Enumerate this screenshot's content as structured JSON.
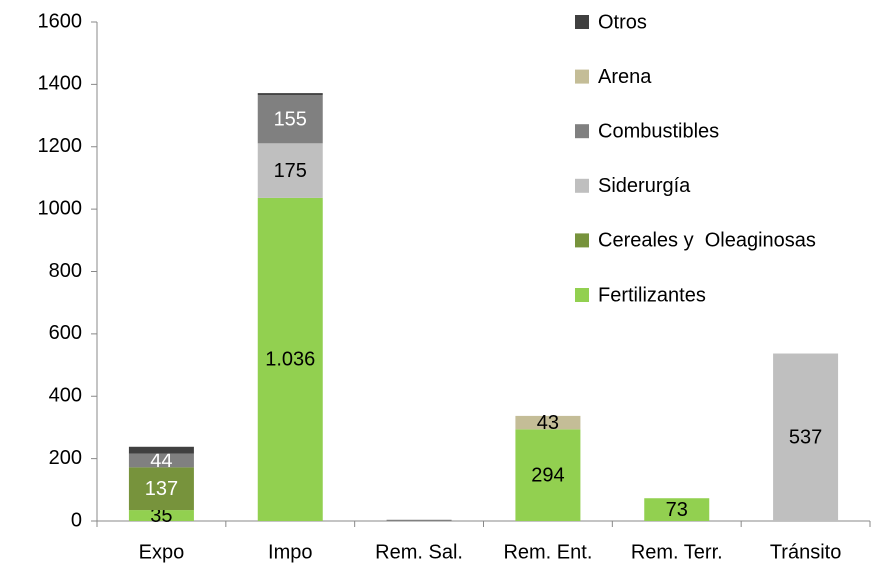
{
  "chart_data": {
    "type": "stacked_bar",
    "categories": [
      "Expo",
      "Impo",
      "Rem. Sal.",
      "Rem. Ent.",
      "Rem. Terr.",
      "Tránsito"
    ],
    "series": [
      {
        "name": "Fertilizantes",
        "color": "#92d050",
        "values": [
          35,
          1036,
          null,
          294,
          73,
          null
        ],
        "value_labels": [
          "35",
          "1.036",
          null,
          "294",
          "73",
          null
        ]
      },
      {
        "name": "Cereales y  Oleaginosas",
        "color": "#77933c",
        "values": [
          137,
          null,
          null,
          null,
          null,
          null
        ],
        "value_labels": [
          "137",
          null,
          null,
          null,
          null,
          null
        ]
      },
      {
        "name": "Siderurgía",
        "color": "#bfbfbf",
        "values": [
          null,
          175,
          null,
          null,
          null,
          537
        ],
        "value_labels": [
          null,
          "175",
          null,
          null,
          null,
          "537"
        ]
      },
      {
        "name": "Combustibles",
        "color": "#808080",
        "values": [
          44,
          155,
          4,
          null,
          null,
          null
        ],
        "value_labels": [
          "44",
          "155",
          null,
          null,
          null,
          null
        ]
      },
      {
        "name": "Arena",
        "color": "#c4bd97",
        "values": [
          null,
          null,
          null,
          43,
          null,
          null
        ],
        "value_labels": [
          null,
          null,
          null,
          "43",
          null,
          null
        ]
      },
      {
        "name": "Otros",
        "color": "#404040",
        "values": [
          22,
          6,
          null,
          null,
          null,
          null
        ],
        "value_labels": [
          null,
          null,
          null,
          null,
          null,
          null
        ]
      }
    ],
    "ylim": [
      0,
      1600
    ],
    "yticks": [
      0,
      200,
      400,
      600,
      800,
      1000,
      1200,
      1400,
      1600
    ],
    "legend": "top-right"
  }
}
